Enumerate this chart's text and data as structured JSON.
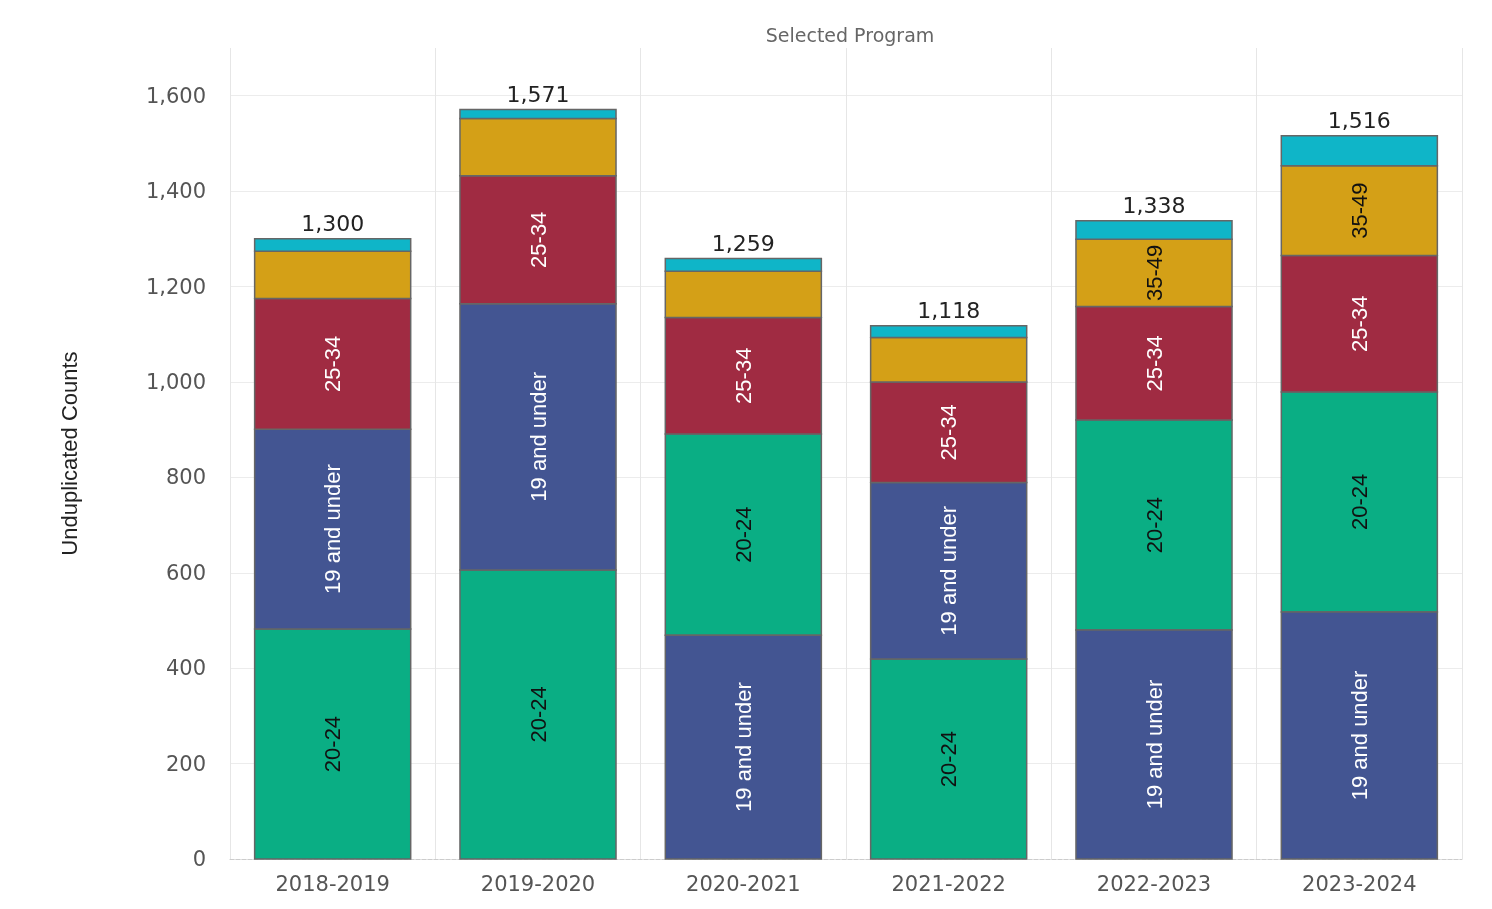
{
  "chart_data": {
    "type": "bar",
    "title": "Selected Program",
    "ylabel": "Unduplicated Counts",
    "categories": [
      "2018-2019",
      "2019-2020",
      "2020-2021",
      "2021-2022",
      "2022-2023",
      "2023-2024"
    ],
    "series": [
      {
        "name": "20-24",
        "color": "#0aae84",
        "base": [
          0,
          0,
          469,
          0,
          480,
          518
        ],
        "values": [
          482,
          606,
          422,
          419,
          440,
          461
        ]
      },
      {
        "name": "19 and under",
        "color": "#435592",
        "base": [
          482,
          606,
          0,
          419,
          0,
          0
        ],
        "values": [
          419,
          558,
          469,
          370,
          480,
          518
        ]
      },
      {
        "name": "25-34",
        "color": "#a02b42",
        "base": [
          901,
          1164,
          891,
          789,
          920,
          979
        ],
        "values": [
          274,
          268,
          244,
          211,
          238,
          286
        ]
      },
      {
        "name": "35-49",
        "color": "#d4a017",
        "base": [
          1175,
          1432,
          1135,
          1000,
          1158,
          1265
        ],
        "values": [
          99,
          120,
          97,
          93,
          141,
          188
        ]
      },
      {
        "color": "#0fb5c8",
        "base": [
          1274,
          1552,
          1232,
          1093,
          1299,
          1453
        ],
        "values": [
          26,
          19,
          27,
          25,
          39,
          63
        ]
      }
    ],
    "totals": [
      "1,300",
      "1,571",
      "1,259",
      "1,118",
      "1,338",
      "1,516"
    ],
    "ylim": [
      0,
      1700
    ],
    "yticks": [
      0,
      200,
      400,
      600,
      800,
      {
        "value": 1000,
        "label": "1,000"
      },
      {
        "value": 1200,
        "label": "1,200"
      },
      {
        "value": 1400,
        "label": "1,400"
      },
      {
        "value": 1600,
        "label": "1,600"
      }
    ],
    "grid": true,
    "legend": false
  }
}
